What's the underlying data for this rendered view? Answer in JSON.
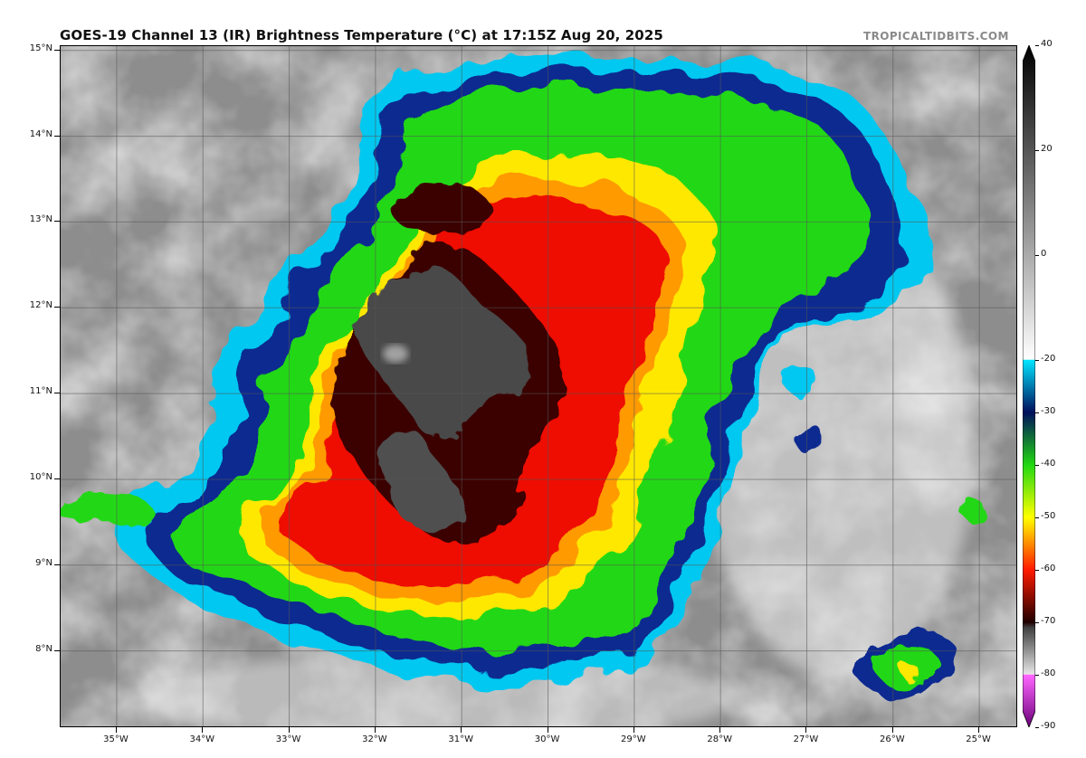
{
  "header": {
    "title": "GOES-19 Channel 13 (IR) Brightness Temperature (°C) at 17:15Z Aug 20, 2025",
    "credit": "TROPICALTIDBITS.COM"
  },
  "map": {
    "lat_labels": [
      "15°N",
      "14°N",
      "13°N",
      "12°N",
      "11°N",
      "10°N",
      "9°N",
      "8°N"
    ],
    "lat_values": [
      15,
      14,
      13,
      12,
      11,
      10,
      9,
      8
    ],
    "lat_range": [
      7.1,
      15.05
    ],
    "lon_labels": [
      "35°W",
      "34°W",
      "33°W",
      "32°W",
      "31°W",
      "30°W",
      "29°W",
      "28°W",
      "27°W",
      "26°W",
      "25°W"
    ],
    "lon_values": [
      -35,
      -34,
      -33,
      -32,
      -31,
      -30,
      -29,
      -28,
      -27,
      -26,
      -25
    ],
    "lon_range": [
      -35.65,
      -24.55
    ]
  },
  "colorbar": {
    "labels": [
      "40",
      "20",
      "0",
      "-20",
      "-30",
      "-40",
      "-50",
      "-60",
      "-70",
      "-80",
      "-90"
    ],
    "values": [
      40,
      20,
      0,
      -20,
      -30,
      -40,
      -50,
      -60,
      -70,
      -80,
      -90
    ],
    "range": [
      -90,
      40
    ],
    "stops": [
      {
        "value": 40,
        "color": "#000000"
      },
      {
        "value": -19.9,
        "color": "#ffffff"
      },
      {
        "value": -20,
        "color": "#00e5ff"
      },
      {
        "value": -30,
        "color": "#00105c"
      },
      {
        "value": -40,
        "color": "#22d812"
      },
      {
        "value": -50,
        "color": "#ffff00"
      },
      {
        "value": -60,
        "color": "#ff1a00"
      },
      {
        "value": -70,
        "color": "#200000"
      },
      {
        "value": -71,
        "color": "#404040"
      },
      {
        "value": -79.9,
        "color": "#e6e6e6"
      },
      {
        "value": -80,
        "color": "#ff66ff"
      },
      {
        "value": -90,
        "color": "#6a007a"
      }
    ]
  },
  "colors": {
    "background_clear": "#8d8d8d",
    "cloud_low": "#e6e6e6",
    "cyan": "#00c8f0",
    "navy": "#0a2a90",
    "green": "#22d812",
    "yellow": "#ffe800",
    "orange": "#ff9a00",
    "red": "#ee1100",
    "dark_red": "#3a0000",
    "overshoot_gray": "#4a4a4a"
  }
}
